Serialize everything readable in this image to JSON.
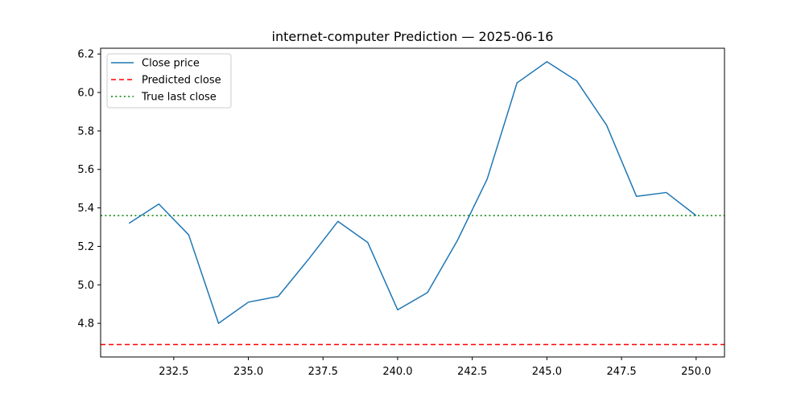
{
  "chart_data": {
    "type": "line",
    "title": "internet-computer Prediction — 2025-06-16",
    "xlabel": "",
    "ylabel": "",
    "xlim": [
      230.05,
      250.95
    ],
    "ylim": [
      4.625,
      6.23
    ],
    "x_ticks": [
      232.5,
      235.0,
      237.5,
      240.0,
      242.5,
      245.0,
      247.5,
      250.0
    ],
    "x_tick_labels": [
      "232.5",
      "235.0",
      "237.5",
      "240.0",
      "242.5",
      "245.0",
      "247.5",
      "250.0"
    ],
    "y_ticks": [
      4.8,
      5.0,
      5.2,
      5.4,
      5.6,
      5.8,
      6.0,
      6.2
    ],
    "y_tick_labels": [
      "4.8",
      "5.0",
      "5.2",
      "5.4",
      "5.6",
      "5.8",
      "6.0",
      "6.2"
    ],
    "grid": false,
    "legend_position": "top-left",
    "series": [
      {
        "name": "Close price",
        "color": "#1f77b4",
        "style": "solid",
        "x": [
          231,
          232,
          233,
          234,
          235,
          236,
          237,
          238,
          239,
          240,
          241,
          242,
          243,
          244,
          245,
          246,
          247,
          248,
          249,
          250
        ],
        "y": [
          5.32,
          5.42,
          5.26,
          4.8,
          4.91,
          4.94,
          5.13,
          5.33,
          5.22,
          4.87,
          4.96,
          5.23,
          5.55,
          6.05,
          6.16,
          6.06,
          5.83,
          5.46,
          5.48,
          5.36
        ]
      }
    ],
    "hlines": [
      {
        "name": "Predicted close",
        "color": "#ff0000",
        "style": "dashed",
        "y": 4.69
      },
      {
        "name": "True last close",
        "color": "#008000",
        "style": "dotted",
        "y": 5.36
      }
    ]
  }
}
